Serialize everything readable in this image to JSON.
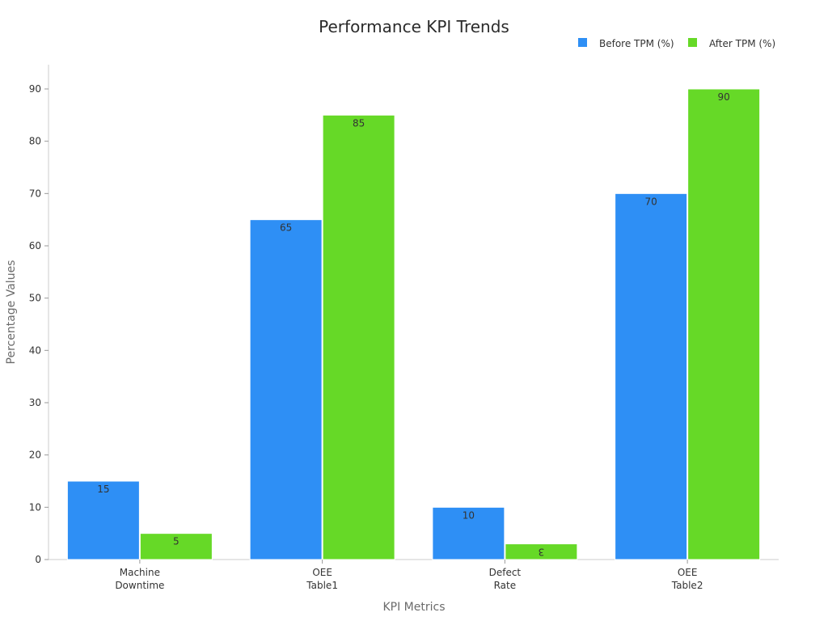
{
  "chart_data": {
    "type": "bar",
    "title": "Performance KPI Trends",
    "xlabel": "KPI Metrics",
    "ylabel": "Percentage Values",
    "categories": [
      [
        "Machine",
        "Downtime"
      ],
      [
        "OEE",
        "Table1"
      ],
      [
        "Defect",
        "Rate"
      ],
      [
        "OEE",
        "Table2"
      ]
    ],
    "series": [
      {
        "name": "Before TPM (%)",
        "color": "#2e8ff5",
        "values": [
          15,
          65,
          10,
          70
        ],
        "labels": [
          "15",
          "65",
          "10",
          "70"
        ]
      },
      {
        "name": "After TPM (%)",
        "color": "#66d927",
        "values": [
          5,
          85,
          3,
          90
        ],
        "labels": [
          "5",
          "85",
          "3",
          "90"
        ]
      }
    ],
    "ylim": [
      0,
      95
    ],
    "yticks": [
      0,
      10,
      20,
      30,
      40,
      50,
      60,
      70,
      80,
      90
    ],
    "ytick_labels": [
      "0",
      "10",
      "20",
      "30",
      "40",
      "50",
      "60",
      "70",
      "80",
      "90"
    ],
    "grid": false,
    "legend_position": "top-right"
  }
}
